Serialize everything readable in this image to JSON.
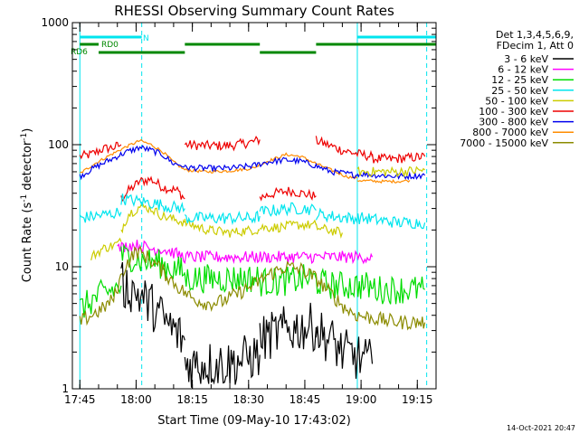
{
  "chart_data": {
    "type": "line",
    "title": "RHESSI Observing Summary Count Rates",
    "xlabel": "Start Time (09-May-10 17:43:02)",
    "ylabel_main": "Count Rate (s",
    "ylabel_sup1": "-1",
    "ylabel_mid": " detector",
    "ylabel_sup2": "-1",
    "ylabel_end": ")",
    "y_scale": "log",
    "ylim": [
      1,
      1000
    ],
    "xlim_min": [
      -2,
      95
    ],
    "x_ticks": [
      {
        "min": 0,
        "label": "17:45"
      },
      {
        "min": 15,
        "label": "18:00"
      },
      {
        "min": 30,
        "label": "18:15"
      },
      {
        "min": 45,
        "label": "18:30"
      },
      {
        "min": 60,
        "label": "18:45"
      },
      {
        "min": 75,
        "label": "19:00"
      },
      {
        "min": 90,
        "label": "19:15"
      }
    ],
    "y_ticks": [
      {
        "value": 1,
        "label": "1"
      },
      {
        "value": 10,
        "label": "10"
      },
      {
        "value": 100,
        "label": "100"
      },
      {
        "value": 1000,
        "label": "1000"
      }
    ],
    "legend_header": [
      "Det 1,3,4,5,6,9,",
      "FDecim 1, Att 0"
    ],
    "legend": [
      {
        "label": "3 - 6 keV",
        "color": "#000000"
      },
      {
        "label": "6 - 12 keV",
        "color": "#ff00ff"
      },
      {
        "label": "12 - 25 keV",
        "color": "#00dd00"
      },
      {
        "label": "25 - 50 keV",
        "color": "#00e5ee"
      },
      {
        "label": "50 - 100 keV",
        "color": "#cccc00"
      },
      {
        "label": "100 - 300 keV",
        "color": "#ee0000"
      },
      {
        "label": "300 - 800 keV",
        "color": "#0000ee"
      },
      {
        "label": "800 - 7000 keV",
        "color": "#ff8c00"
      },
      {
        "label": "7000 - 15000 keV",
        "color": "#8b8b00"
      }
    ],
    "flags": [
      {
        "label": "N",
        "color": "#00e5ee",
        "segments": [
          [
            0,
            16.5
          ],
          [
            74,
            95
          ]
        ]
      },
      {
        "label": "RD0",
        "color": "#008800",
        "segments": [
          [
            0,
            5
          ],
          [
            28,
            48
          ],
          [
            63,
            95
          ]
        ]
      },
      {
        "label": "RD6",
        "color": "#008800",
        "segments": [
          [
            5,
            28
          ],
          [
            48,
            63
          ]
        ]
      }
    ],
    "night_lines_min": [
      16.5,
      92.5
    ],
    "day_lines_min": [
      0,
      74
    ],
    "series": [
      {
        "name": "100 - 300 keV",
        "color": "#ee0000",
        "noise": 0.04,
        "segments": [
          [
            [
              0,
              80
            ],
            [
              3,
              83
            ],
            [
              6,
              92
            ],
            [
              9,
              95
            ],
            [
              11,
              100
            ]
          ],
          [
            [
              11,
              36
            ],
            [
              13,
              42
            ],
            [
              16,
              50
            ],
            [
              19,
              52
            ],
            [
              22,
              45
            ],
            [
              26,
              42
            ],
            [
              28,
              36
            ]
          ],
          [
            [
              28,
              100
            ],
            [
              34,
              98
            ],
            [
              40,
              98
            ],
            [
              46,
              105
            ],
            [
              48,
              110
            ]
          ],
          [
            [
              48,
              37
            ],
            [
              52,
              40
            ],
            [
              56,
              42
            ],
            [
              59,
              40
            ],
            [
              63,
              38
            ]
          ],
          [
            [
              63,
              108
            ],
            [
              66,
              100
            ],
            [
              70,
              90
            ],
            [
              74,
              84
            ],
            [
              78,
              80
            ]
          ],
          [
            [
              78,
              77
            ],
            [
              83,
              76
            ],
            [
              88,
              78
            ],
            [
              92,
              80
            ]
          ]
        ]
      },
      {
        "name": "800 - 7000 keV",
        "color": "#ff8c00",
        "noise": 0.012,
        "segments": [
          [
            [
              0,
              58
            ],
            [
              4,
              70
            ],
            [
              8,
              82
            ],
            [
              12,
              95
            ],
            [
              16,
              108
            ],
            [
              19,
              100
            ],
            [
              22,
              88
            ],
            [
              25,
              72
            ],
            [
              28,
              62
            ]
          ],
          [
            [
              28,
              62
            ],
            [
              34,
              60
            ],
            [
              40,
              61
            ],
            [
              46,
              64
            ],
            [
              50,
              73
            ],
            [
              55,
              83
            ],
            [
              59,
              80
            ],
            [
              63,
              70
            ],
            [
              67,
              62
            ],
            [
              71,
              55
            ],
            [
              74,
              53
            ]
          ],
          [
            [
              74,
              51
            ],
            [
              80,
              50
            ],
            [
              85,
              50
            ],
            [
              88,
              51
            ]
          ]
        ]
      },
      {
        "name": "300 - 800 keV",
        "color": "#0000ee",
        "noise": 0.025,
        "segments": [
          [
            [
              0,
              55
            ],
            [
              4,
              65
            ],
            [
              8,
              75
            ],
            [
              12,
              86
            ],
            [
              16,
              95
            ],
            [
              19,
              90
            ],
            [
              22,
              83
            ],
            [
              25,
              70
            ],
            [
              28,
              67
            ]
          ],
          [
            [
              28,
              65
            ],
            [
              34,
              64
            ],
            [
              40,
              64
            ],
            [
              46,
              67
            ],
            [
              50,
              72
            ],
            [
              55,
              75
            ],
            [
              59,
              73
            ],
            [
              63,
              67
            ],
            [
              67,
              60
            ],
            [
              71,
              58
            ],
            [
              74,
              56
            ]
          ],
          [
            [
              74,
              58
            ],
            [
              80,
              56
            ],
            [
              85,
              55
            ],
            [
              92,
              56
            ]
          ]
        ]
      },
      {
        "name": "50 - 100 keV",
        "color": "#cccc00",
        "noise": 0.04,
        "segments": [
          [
            [
              3,
              12
            ],
            [
              6,
              14
            ],
            [
              9,
              15
            ],
            [
              11,
              16
            ]
          ],
          [
            [
              11,
              20
            ],
            [
              13,
              27
            ],
            [
              16,
              31
            ],
            [
              19,
              30
            ],
            [
              22,
              26
            ],
            [
              26,
              24
            ],
            [
              28,
              23
            ]
          ],
          [
            [
              28,
              23
            ],
            [
              34,
              20
            ],
            [
              40,
              19
            ],
            [
              46,
              20
            ],
            [
              48,
              20
            ]
          ],
          [
            [
              48,
              21
            ],
            [
              53,
              21
            ],
            [
              58,
              22
            ],
            [
              63,
              22
            ]
          ],
          [
            [
              63,
              21
            ],
            [
              66,
              20
            ],
            [
              70,
              19
            ]
          ],
          [
            [
              74,
              60
            ],
            [
              80,
              60
            ],
            [
              85,
              60
            ],
            [
              92,
              62
            ]
          ]
        ]
      },
      {
        "name": "25 - 50 keV",
        "color": "#00e5ee",
        "noise": 0.05,
        "segments": [
          [
            [
              0,
              25
            ],
            [
              4,
              26
            ],
            [
              8,
              27
            ],
            [
              11,
              28
            ]
          ],
          [
            [
              11,
              36
            ],
            [
              14,
              35
            ],
            [
              17,
              34
            ],
            [
              20,
              33
            ],
            [
              24,
              31
            ],
            [
              28,
              30
            ]
          ],
          [
            [
              28,
              25
            ],
            [
              34,
              25
            ],
            [
              40,
              25
            ],
            [
              46,
              25
            ],
            [
              48,
              26
            ]
          ],
          [
            [
              48,
              28
            ],
            [
              52,
              29
            ],
            [
              56,
              30
            ],
            [
              60,
              30
            ],
            [
              63,
              29
            ]
          ],
          [
            [
              63,
              27
            ],
            [
              67,
              26
            ],
            [
              72,
              25
            ],
            [
              76,
              25
            ],
            [
              80,
              24
            ],
            [
              85,
              23
            ],
            [
              92,
              23
            ]
          ]
        ]
      },
      {
        "name": "6 - 12 keV",
        "color": "#ff00ff",
        "noise": 0.05,
        "segments": [
          [
            [
              10,
              14
            ],
            [
              13,
              15
            ],
            [
              16,
              15
            ],
            [
              19,
              14
            ],
            [
              22,
              14
            ],
            [
              25,
              13
            ],
            [
              28,
              12
            ],
            [
              34,
              12
            ],
            [
              40,
              12
            ],
            [
              46,
              12
            ],
            [
              52,
              12
            ],
            [
              58,
              12
            ],
            [
              64,
              12
            ],
            [
              70,
              12
            ],
            [
              76,
              12
            ],
            [
              78,
              12
            ]
          ]
        ]
      },
      {
        "name": "12 - 25 keV",
        "color": "#00dd00",
        "noise": 0.12,
        "segments": [
          [
            [
              0,
              4.5
            ],
            [
              3,
              5.2
            ],
            [
              6,
              6.0
            ],
            [
              9,
              6.5
            ],
            [
              11,
              7
            ]
          ],
          [
            [
              11,
              12
            ],
            [
              14,
              12
            ],
            [
              17,
              11
            ],
            [
              20,
              11
            ],
            [
              23,
              10
            ],
            [
              26,
              9.5
            ],
            [
              28,
              9
            ]
          ],
          [
            [
              28,
              8
            ],
            [
              34,
              8
            ],
            [
              40,
              8
            ],
            [
              46,
              8
            ],
            [
              48,
              8
            ]
          ],
          [
            [
              48,
              7.5
            ],
            [
              54,
              7.5
            ],
            [
              60,
              8
            ],
            [
              63,
              8
            ]
          ],
          [
            [
              63,
              7.5
            ],
            [
              68,
              7
            ],
            [
              72,
              7
            ],
            [
              76,
              7
            ],
            [
              80,
              6.5
            ],
            [
              85,
              6.5
            ],
            [
              92,
              6.5
            ]
          ]
        ]
      },
      {
        "name": "7000 - 15000 keV",
        "color": "#8b8b00",
        "noise": 0.06,
        "segments": [
          [
            [
              0,
              3.5
            ],
            [
              3,
              4
            ],
            [
              6,
              4.5
            ],
            [
              9,
              5.5
            ],
            [
              12,
              10
            ],
            [
              15,
              13.5
            ],
            [
              18,
              12
            ],
            [
              21,
              10
            ],
            [
              24,
              8
            ],
            [
              27,
              6.5
            ],
            [
              30,
              5.5
            ],
            [
              34,
              5
            ],
            [
              38,
              5.2
            ],
            [
              42,
              6
            ],
            [
              46,
              7
            ],
            [
              50,
              8.5
            ],
            [
              55,
              10
            ],
            [
              59,
              9.5
            ],
            [
              63,
              8
            ],
            [
              67,
              6
            ],
            [
              71,
              4.5
            ],
            [
              74,
              4
            ],
            [
              78,
              3.8
            ],
            [
              82,
              3.6
            ],
            [
              86,
              3.5
            ],
            [
              90,
              3.5
            ],
            [
              92,
              3.5
            ]
          ]
        ]
      },
      {
        "name": "3 - 6 keV",
        "color": "#000000",
        "noise": 0.2,
        "segments": [
          [
            [
              11,
              7
            ],
            [
              14,
              6.5
            ],
            [
              17,
              5.5
            ],
            [
              20,
              4.5
            ],
            [
              23,
              3.5
            ],
            [
              26,
              2.8
            ],
            [
              28,
              2.5
            ]
          ],
          [
            [
              28,
              1.6
            ],
            [
              34,
              1.6
            ],
            [
              40,
              1.6
            ],
            [
              45,
              1.8
            ],
            [
              48,
              1.9
            ]
          ],
          [
            [
              48,
              2.5
            ],
            [
              54,
              3
            ],
            [
              60,
              3.2
            ],
            [
              63,
              3.2
            ]
          ],
          [
            [
              63,
              3
            ],
            [
              67,
              2.5
            ],
            [
              70,
              2
            ],
            [
              74,
              1.8
            ],
            [
              78,
              1.6
            ]
          ]
        ]
      }
    ]
  },
  "timestamp": "14-Oct-2021 20:47"
}
